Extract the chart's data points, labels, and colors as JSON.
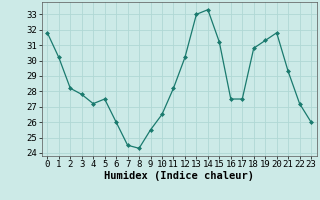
{
  "x": [
    0,
    1,
    2,
    3,
    4,
    5,
    6,
    7,
    8,
    9,
    10,
    11,
    12,
    13,
    14,
    15,
    16,
    17,
    18,
    19,
    20,
    21,
    22,
    23
  ],
  "y": [
    31.8,
    30.2,
    28.2,
    27.8,
    27.2,
    27.5,
    26.0,
    24.5,
    24.3,
    25.5,
    26.5,
    28.2,
    30.2,
    33.0,
    33.3,
    31.2,
    27.5,
    27.5,
    30.8,
    31.3,
    31.8,
    29.3,
    27.2,
    26.0
  ],
  "xlabel": "Humidex (Indice chaleur)",
  "ylim_min": 23.8,
  "ylim_max": 33.8,
  "yticks": [
    24,
    25,
    26,
    27,
    28,
    29,
    30,
    31,
    32,
    33
  ],
  "xticks": [
    0,
    1,
    2,
    3,
    4,
    5,
    6,
    7,
    8,
    9,
    10,
    11,
    12,
    13,
    14,
    15,
    16,
    17,
    18,
    19,
    20,
    21,
    22,
    23
  ],
  "line_color": "#1a7a6e",
  "marker": "D",
  "marker_size": 2.0,
  "bg_color": "#cceae7",
  "grid_color": "#b0d8d4",
  "tick_label_fontsize": 6.5,
  "xlabel_fontsize": 7.5
}
